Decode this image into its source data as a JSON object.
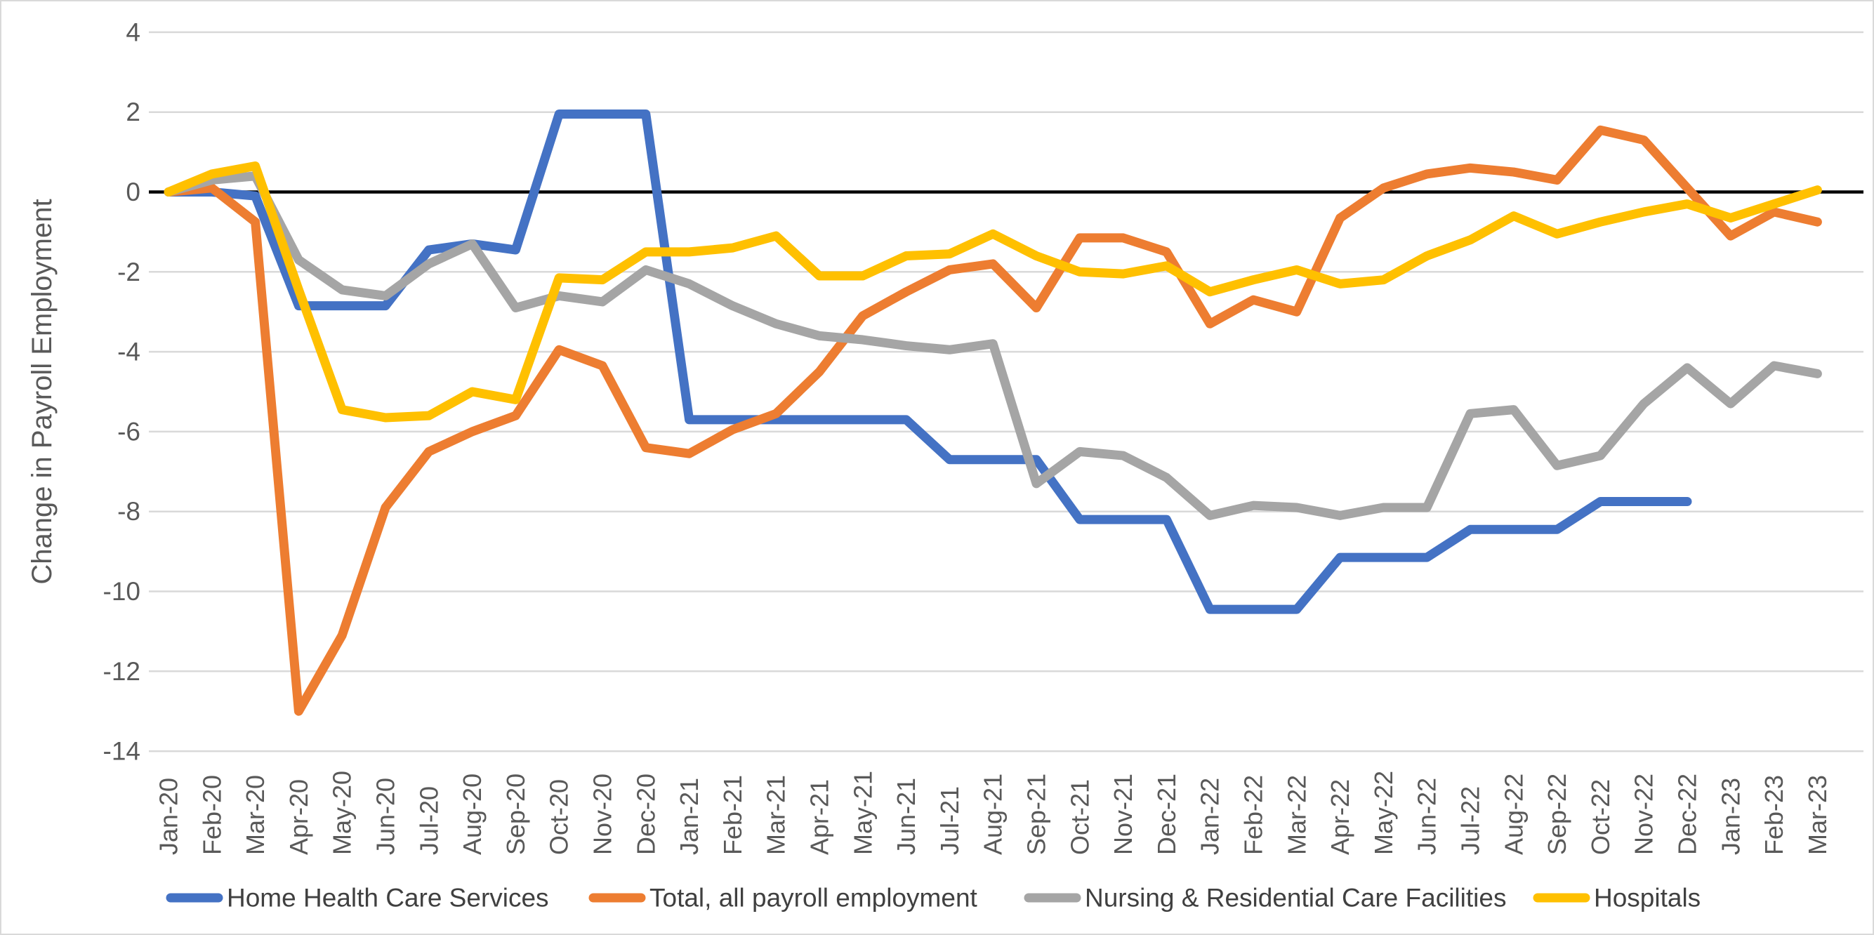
{
  "chart_data": {
    "type": "line",
    "title": "",
    "xlabel": "",
    "ylabel": "Change in Payroll Employment",
    "ylim": [
      -14,
      4
    ],
    "yticks": [
      4,
      2,
      0,
      -2,
      -4,
      -6,
      -8,
      -10,
      -12,
      -14
    ],
    "grid": true,
    "zero_line": true,
    "legend_position": "bottom",
    "categories": [
      "Jan-20",
      "Feb-20",
      "Mar-20",
      "Apr-20",
      "May-20",
      "Jun-20",
      "Jul-20",
      "Aug-20",
      "Sep-20",
      "Oct-20",
      "Nov-20",
      "Dec-20",
      "Jan-21",
      "Feb-21",
      "Mar-21",
      "Apr-21",
      "May-21",
      "Jun-21",
      "Jul-21",
      "Aug-21",
      "Sep-21",
      "Oct-21",
      "Nov-21",
      "Dec-21",
      "Jan-22",
      "Feb-22",
      "Mar-22",
      "Apr-22",
      "May-22",
      "Jun-22",
      "Jul-22",
      "Aug-22",
      "Sep-22",
      "Oct-22",
      "Nov-22",
      "Dec-22",
      "Jan-23",
      "Feb-23",
      "Mar-23"
    ],
    "series": [
      {
        "name": "Home Health Care Services",
        "color": "#4472C4",
        "values": [
          0,
          0,
          -0.1,
          -2.85,
          -2.85,
          -2.85,
          -1.45,
          -1.3,
          -1.45,
          1.95,
          1.95,
          1.95,
          -5.7,
          -5.7,
          -5.7,
          -5.7,
          -5.7,
          -5.7,
          -6.7,
          -6.7,
          -6.7,
          -8.2,
          -8.2,
          -8.2,
          -10.45,
          -10.45,
          -10.45,
          -9.15,
          -9.15,
          -9.15,
          -8.45,
          -8.45,
          -8.45,
          -7.75,
          -7.75,
          -7.75,
          null,
          null,
          null
        ]
      },
      {
        "name": "Total, all payroll employment",
        "color": "#ED7D31",
        "values": [
          0,
          0.1,
          -0.75,
          -13,
          -11.1,
          -7.9,
          -6.5,
          -6.0,
          -5.6,
          -3.95,
          -4.35,
          -6.4,
          -6.55,
          -5.95,
          -5.55,
          -4.5,
          -3.1,
          -2.5,
          -1.95,
          -1.8,
          -2.9,
          -1.15,
          -1.15,
          -1.5,
          -3.3,
          -2.7,
          -3.0,
          -0.65,
          0.1,
          0.45,
          0.6,
          0.5,
          0.3,
          1.55,
          1.3,
          0.1,
          -1.1,
          -0.5,
          -0.75
        ]
      },
      {
        "name": "Nursing & Residential Care Facilities",
        "color": "#A5A5A5",
        "values": [
          0,
          0.3,
          0.4,
          -1.7,
          -2.45,
          -2.6,
          -1.8,
          -1.3,
          -2.9,
          -2.6,
          -2.75,
          -1.95,
          -2.3,
          -2.85,
          -3.3,
          -3.6,
          -3.7,
          -3.85,
          -3.95,
          -3.8,
          -7.3,
          -6.5,
          -6.6,
          -7.15,
          -8.1,
          -7.85,
          -7.9,
          -8.1,
          -7.9,
          -7.9,
          -5.55,
          -5.45,
          -6.85,
          -6.6,
          -5.3,
          -4.4,
          -5.3,
          -4.35,
          -4.55
        ]
      },
      {
        "name": "Hospitals",
        "color": "#FFC000",
        "values": [
          0,
          0.45,
          0.65,
          -2.45,
          -5.45,
          -5.65,
          -5.6,
          -5.0,
          -5.2,
          -2.15,
          -2.2,
          -1.5,
          -1.5,
          -1.4,
          -1.1,
          -2.1,
          -2.1,
          -1.6,
          -1.55,
          -1.05,
          -1.6,
          -2.0,
          -2.05,
          -1.85,
          -2.5,
          -2.2,
          -1.95,
          -2.3,
          -2.2,
          -1.6,
          -1.2,
          -0.6,
          -1.05,
          -0.75,
          -0.5,
          -0.3,
          -0.65,
          -0.3,
          0.05
        ]
      }
    ]
  },
  "styles": {
    "grid_color": "#D9D9D9",
    "zero_line_color": "#000000",
    "tick_label_color": "#595959",
    "axis_title_color": "#595959",
    "legend_text_color": "#404040",
    "background": "#FFFFFF"
  }
}
